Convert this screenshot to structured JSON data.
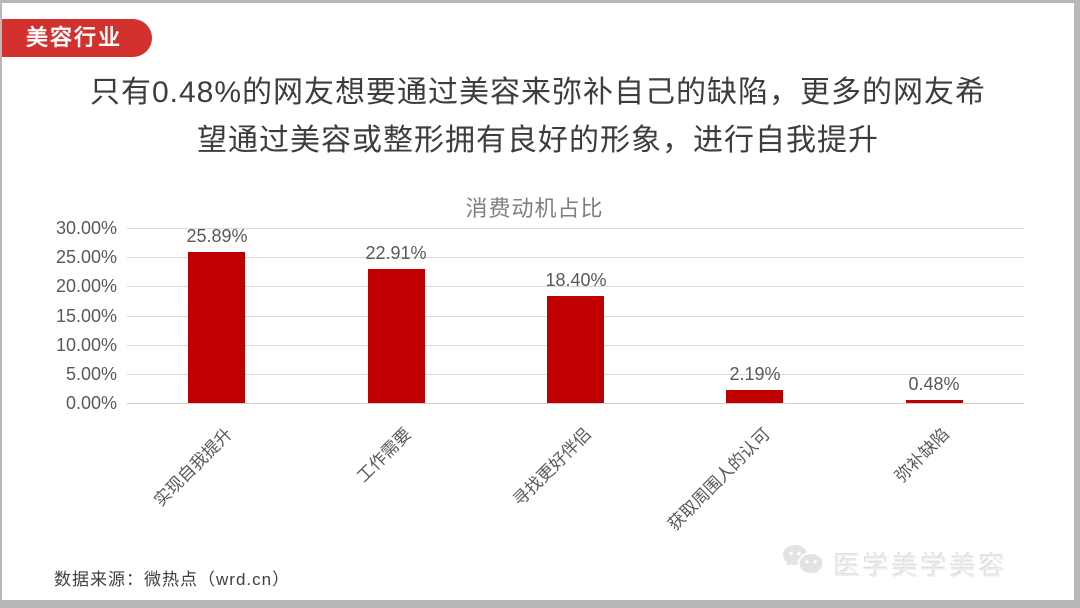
{
  "page": {
    "badge": "美容行业",
    "headline_line1": "只有0.48%的网友想要通过美容来弥补自己的缺陷，更多的网友希",
    "headline_line2": "望通过美容或整形拥有良好的形象，进行自我提升",
    "source": "数据来源：微热点（wrd.cn）",
    "watermark": "医学美学美容"
  },
  "colors": {
    "badge_bg": "#d2312e",
    "bar_red": "#c00000",
    "frame_gray": "#b8b8b8",
    "gridline": "#d9d9d9",
    "axis_text": "#595959"
  },
  "chart_data": {
    "type": "bar",
    "title": "消费动机占比",
    "categories": [
      "实现自我提升",
      "工作需要",
      "寻找更好伴侣",
      "获取周围人的认可",
      "弥补缺陷"
    ],
    "values": [
      25.89,
      22.91,
      18.4,
      2.19,
      0.48
    ],
    "value_labels": [
      "25.89%",
      "22.91%",
      "18.40%",
      "2.19%",
      "0.48%"
    ],
    "ytick_values": [
      0,
      5,
      10,
      15,
      20,
      25,
      30
    ],
    "ytick_labels": [
      "0.00%",
      "5.00%",
      "10.00%",
      "15.00%",
      "20.00%",
      "25.00%",
      "30.00%"
    ],
    "ylim": [
      0,
      30
    ],
    "xlabel": "",
    "ylabel": "",
    "grid": true,
    "legend": "none",
    "bar_color": "#c00000"
  }
}
